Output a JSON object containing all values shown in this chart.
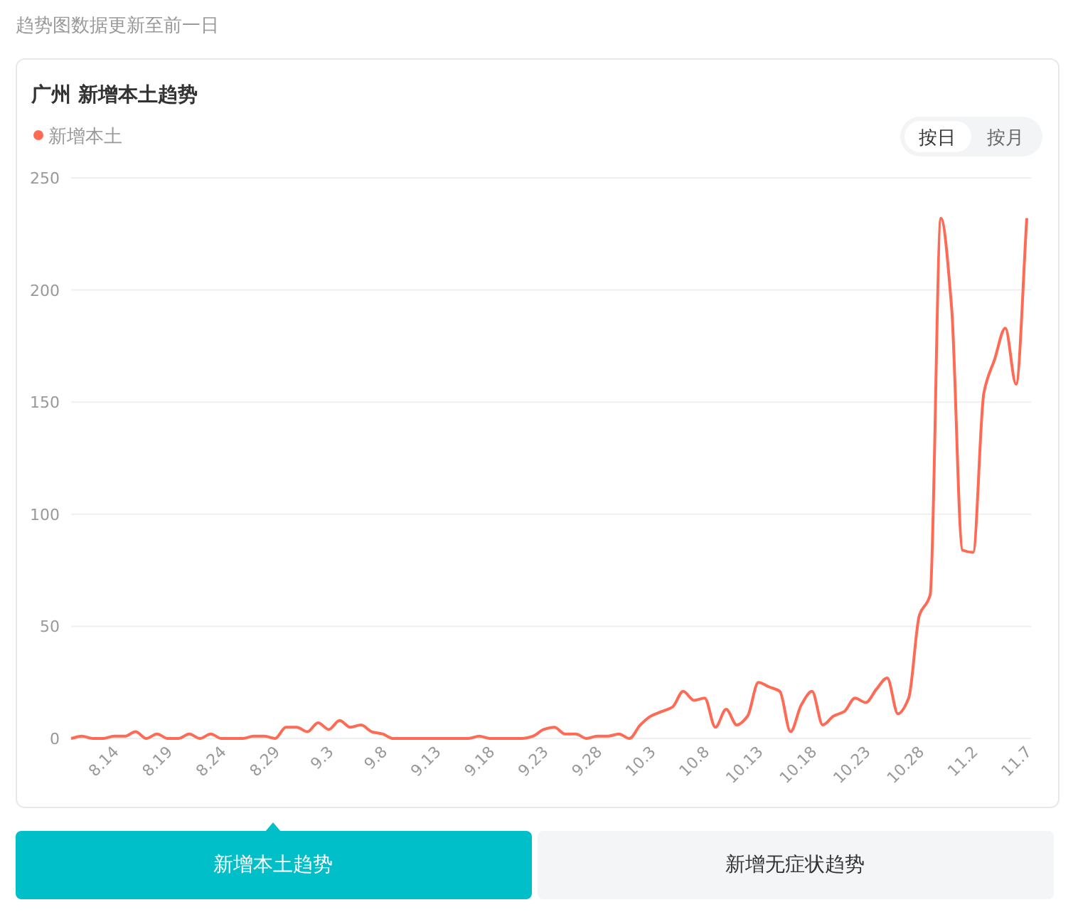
{
  "chart_data": {
    "type": "line",
    "title": "广州 新增本土趋势",
    "annotations": [
      "趋势图数据更新至前一日",
      "按日",
      "按月",
      "新增本土趋势",
      "新增无症状趋势"
    ],
    "categories": [
      null,
      null,
      null,
      null,
      "8.14",
      null,
      null,
      null,
      null,
      "8.19",
      null,
      null,
      null,
      null,
      "8.24",
      null,
      null,
      null,
      null,
      "8.29",
      null,
      null,
      null,
      null,
      "9.3",
      null,
      null,
      null,
      null,
      "9.8",
      null,
      null,
      null,
      null,
      "9.13",
      null,
      null,
      null,
      null,
      "9.18",
      null,
      null,
      null,
      null,
      "9.23",
      null,
      null,
      null,
      null,
      "9.28",
      null,
      null,
      null,
      null,
      "10.3",
      null,
      null,
      null,
      null,
      "10.8",
      null,
      null,
      null,
      null,
      "10.13",
      null,
      null,
      null,
      null,
      "10.18",
      null,
      null,
      null,
      null,
      "10.23",
      null,
      null,
      null,
      null,
      "10.28",
      null,
      null,
      null,
      null,
      "11.2",
      null,
      null,
      null,
      null,
      "11.7"
    ],
    "series": [
      {
        "name": "新增本土",
        "color": "#ff6a55",
        "values": [
          0,
          1,
          0,
          0,
          1,
          1,
          3,
          0,
          2,
          0,
          0,
          2,
          0,
          2,
          0,
          0,
          0,
          1,
          1,
          0,
          5,
          5,
          3,
          7,
          4,
          8,
          5,
          6,
          3,
          2,
          0,
          0,
          0,
          0,
          0,
          0,
          0,
          0,
          1,
          0,
          0,
          0,
          0,
          1,
          4,
          5,
          2,
          2,
          0,
          1,
          1,
          2,
          0,
          6,
          10,
          12,
          14,
          21,
          17,
          18,
          5,
          13,
          6,
          10,
          25,
          23,
          21,
          3,
          15,
          21,
          6,
          10,
          12,
          18,
          16,
          22,
          27,
          11,
          18,
          55,
          64,
          232,
          192,
          84,
          83,
          154,
          169,
          183,
          158,
          232
        ]
      }
    ],
    "ylim": [
      0,
      250
    ],
    "yticks": [
      0,
      50,
      100,
      150,
      200,
      250
    ],
    "grid": "y",
    "legend": "top left",
    "marker": "none",
    "line_style": "solid"
  }
}
